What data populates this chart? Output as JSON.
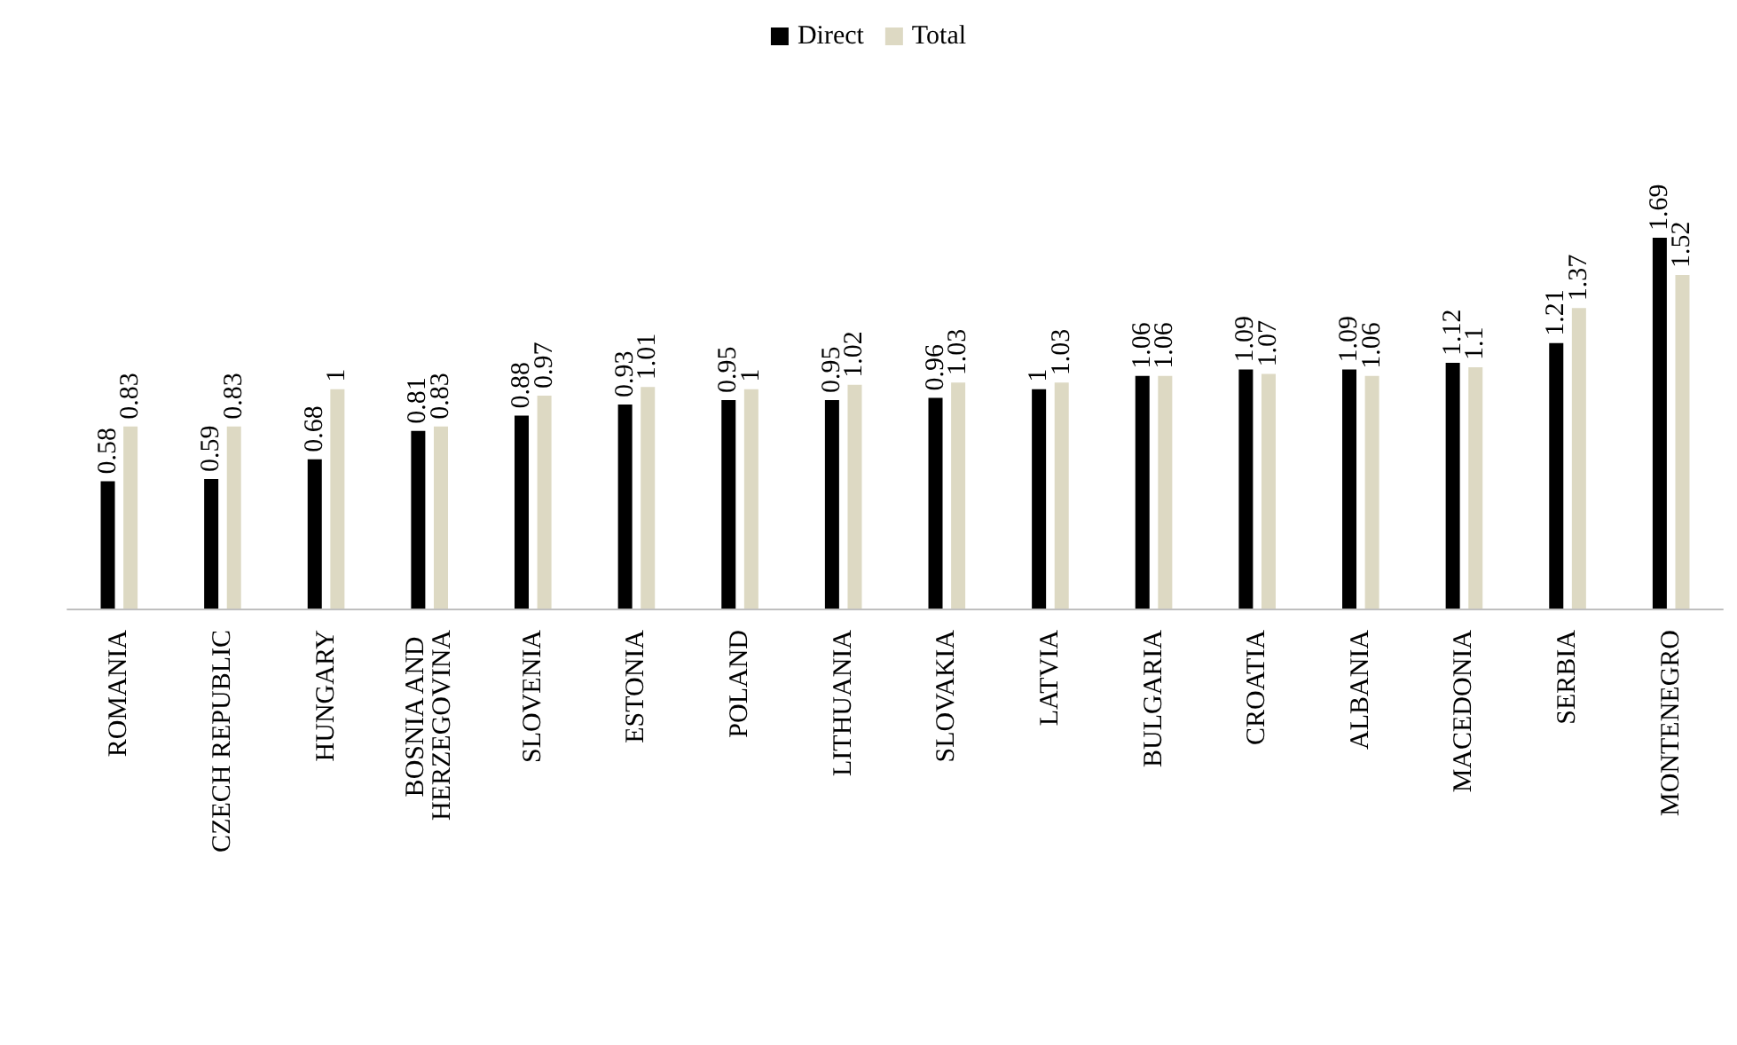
{
  "chart_data": {
    "type": "bar",
    "data_labels": true,
    "legend": "top",
    "grid": false,
    "categories": [
      "ROMANIA",
      "CZECH REPUBLIC",
      "HUNGARY",
      "BOSNIA AND HERZEGOVINA",
      "SLOVENIA",
      "ESTONIA",
      "POLAND",
      "LITHUANIA",
      "SLOVAKIA",
      "LATVIA",
      "BULGARIA",
      "CROATIA",
      "ALBANIA",
      "MACEDONIA",
      "SERBIA",
      "MONTENEGRO"
    ],
    "series": [
      {
        "name": "Direct",
        "color": "#000000",
        "values": [
          0.58,
          0.59,
          0.68,
          0.81,
          0.88,
          0.93,
          0.95,
          0.95,
          0.96,
          1,
          1.06,
          1.09,
          1.09,
          1.12,
          1.21,
          1.69
        ]
      },
      {
        "name": "Total",
        "color": "#ddd9c3",
        "values": [
          0.83,
          0.83,
          1,
          0.83,
          0.97,
          1.01,
          1,
          1.02,
          1.03,
          1.03,
          1.06,
          1.07,
          1.06,
          1.1,
          1.37,
          1.52
        ]
      }
    ]
  }
}
